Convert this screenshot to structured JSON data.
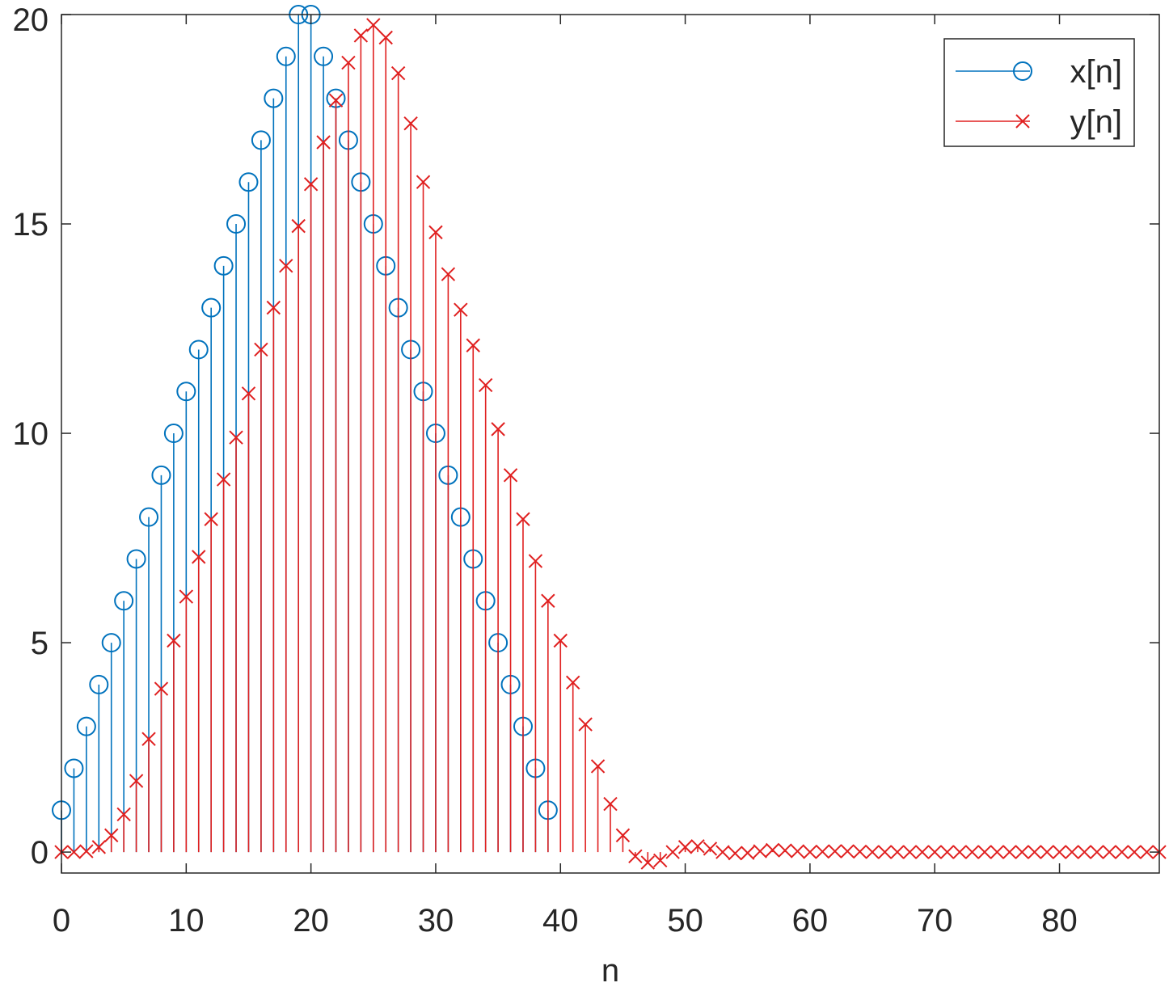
{
  "chart_data": {
    "type": "stem",
    "title": "",
    "xlabel": "n",
    "ylabel": "",
    "xlim": [
      0,
      88
    ],
    "ylim": [
      -0.5,
      20
    ],
    "xticks": [
      0,
      10,
      20,
      30,
      40,
      50,
      60,
      70,
      80
    ],
    "yticks": [
      0,
      5,
      10,
      15,
      20
    ],
    "grid": false,
    "legend_position": "top-right",
    "series": [
      {
        "name": "x[n]",
        "marker": "circle",
        "color": "#0072BD",
        "x": [
          0,
          1,
          2,
          3,
          4,
          5,
          6,
          7,
          8,
          9,
          10,
          11,
          12,
          13,
          14,
          15,
          16,
          17,
          18,
          19,
          20,
          21,
          22,
          23,
          24,
          25,
          26,
          27,
          28,
          29,
          30,
          31,
          32,
          33,
          34,
          35,
          36,
          37,
          38,
          39
        ],
        "values": [
          1,
          2,
          3,
          4,
          5,
          6,
          7,
          8,
          9,
          10,
          11,
          12,
          13,
          14,
          15,
          16,
          17,
          18,
          19,
          20,
          20,
          19,
          18,
          17,
          16,
          15,
          14,
          13,
          12,
          11,
          10,
          9,
          8,
          7,
          6,
          5,
          4,
          3,
          2,
          1
        ]
      },
      {
        "name": "y[n]",
        "marker": "x",
        "color": "#E02020",
        "x": [
          0,
          1,
          2,
          3,
          4,
          5,
          6,
          7,
          8,
          9,
          10,
          11,
          12,
          13,
          14,
          15,
          16,
          17,
          18,
          19,
          20,
          21,
          22,
          23,
          24,
          25,
          26,
          27,
          28,
          29,
          30,
          31,
          32,
          33,
          34,
          35,
          36,
          37,
          38,
          39,
          40,
          41,
          42,
          43,
          44,
          45,
          46,
          47,
          48,
          49,
          50,
          51,
          52,
          53,
          54,
          55,
          56,
          57,
          58,
          59,
          60,
          61,
          62,
          63,
          64,
          65,
          66,
          67,
          68,
          69,
          70,
          71,
          72,
          73,
          74,
          75,
          76,
          77,
          78,
          79,
          80,
          81,
          82,
          83,
          84,
          85,
          86,
          87,
          88
        ],
        "values": [
          0,
          0,
          0.02,
          0.12,
          0.4,
          0.9,
          1.7,
          2.7,
          3.9,
          5.05,
          6.1,
          7.05,
          7.95,
          8.9,
          9.9,
          10.95,
          12.0,
          13.0,
          14.0,
          14.95,
          15.95,
          16.95,
          17.95,
          18.85,
          19.5,
          19.75,
          19.45,
          18.6,
          17.4,
          16.0,
          14.8,
          13.8,
          12.95,
          12.1,
          11.15,
          10.1,
          9.0,
          7.95,
          6.95,
          6.0,
          5.05,
          4.05,
          3.05,
          2.05,
          1.15,
          0.4,
          -0.1,
          -0.25,
          -0.2,
          0,
          0.12,
          0.14,
          0.08,
          0,
          -0.03,
          -0.02,
          0.02,
          0.05,
          0.04,
          0.02,
          0,
          0.01,
          0.02,
          0.02,
          0.01,
          0,
          0,
          0,
          0,
          0,
          0,
          0,
          0,
          0,
          0,
          0,
          0,
          0,
          0,
          0,
          0,
          0,
          0,
          0,
          0,
          0,
          0,
          0,
          0
        ]
      }
    ]
  }
}
